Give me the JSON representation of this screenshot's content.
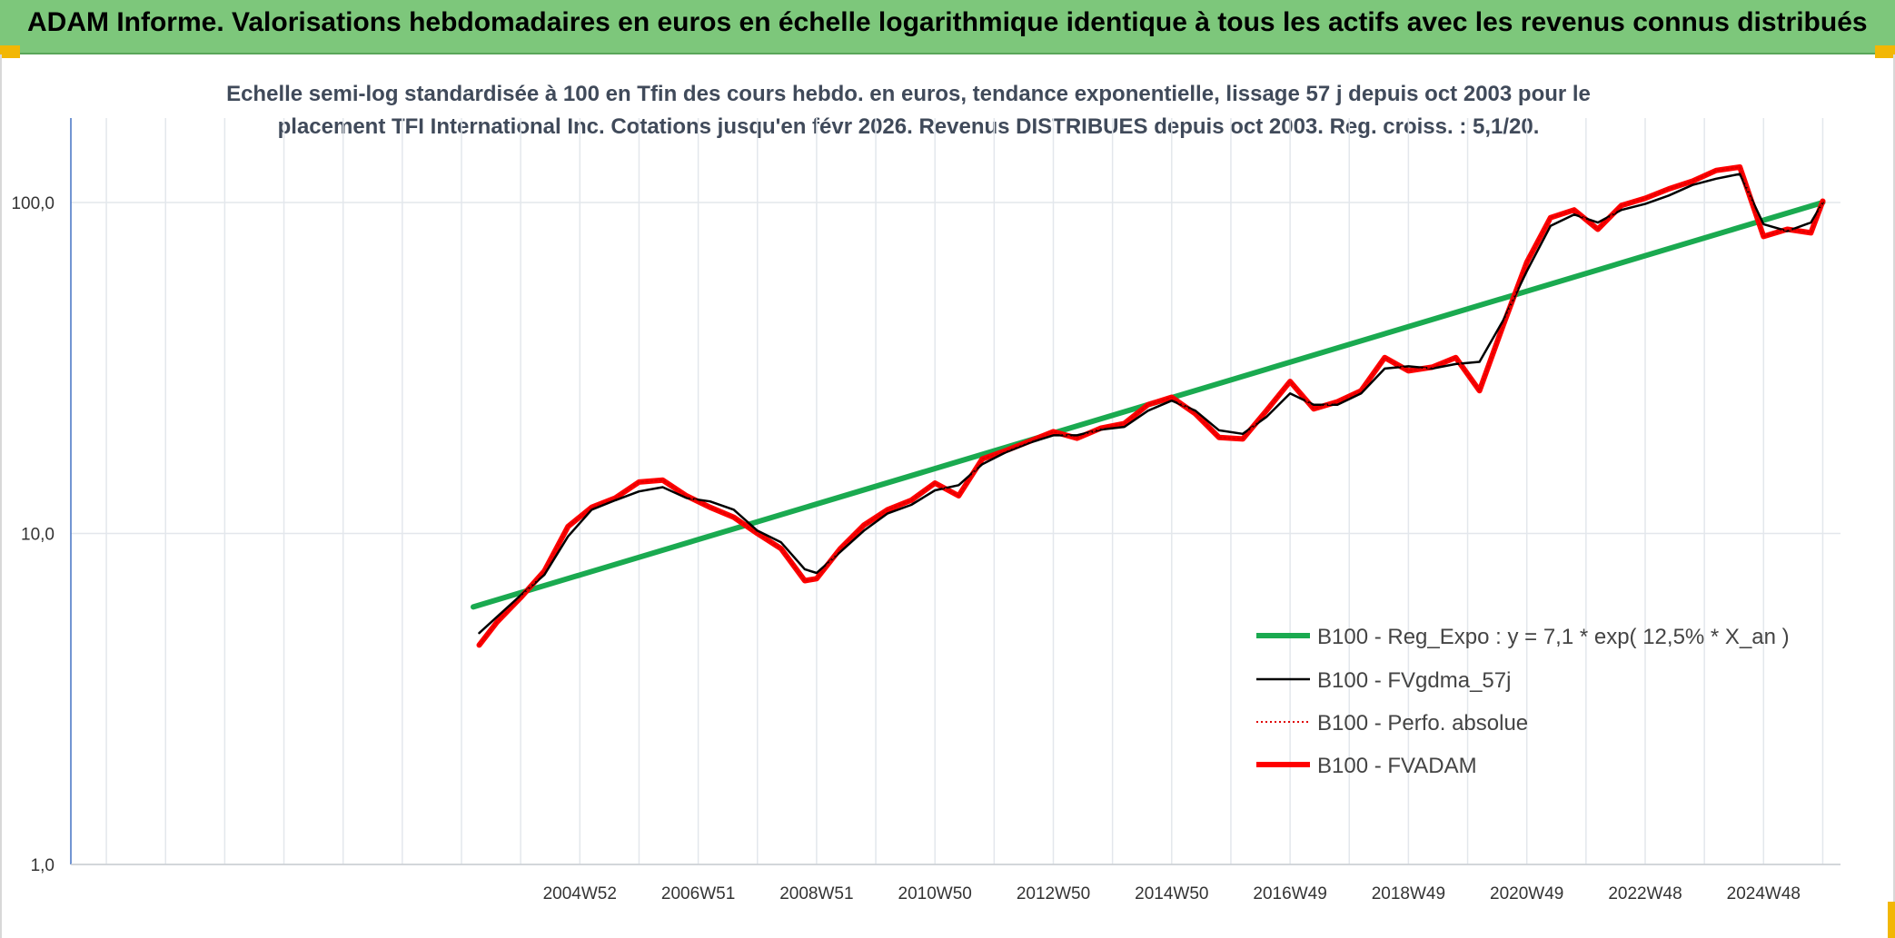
{
  "header": {
    "title": "ADAM Informe. Valorisations hebdomadaires en euros en échelle logarithmique identique à tous les actifs avec les revenus connus distribués"
  },
  "chart_data": {
    "type": "line",
    "title": "Echelle semi-log standardisée à 100 en Tfin des cours hebdo. en euros, tendance exponentielle, lissage 57 j depuis oct 2003 pour le placement TFI International Inc. Cotations jusqu'en févr 2026. Revenus DISTRIBUES depuis oct 2003. Reg. croiss. : 5,1/20.",
    "y_scale": "log",
    "ylim": [
      1,
      180
    ],
    "y_ticks": [
      "1,0",
      "10,0",
      "100,0"
    ],
    "y_tick_values": [
      1,
      10,
      100
    ],
    "xlim": [
      1996.4,
      2026.3
    ],
    "x_ticks": [
      "2004W52",
      "2006W51",
      "2008W51",
      "2010W50",
      "2012W50",
      "2014W50",
      "2016W49",
      "2018W49",
      "2020W49",
      "2022W48",
      "2024W48"
    ],
    "x_tick_values": [
      2005.0,
      2007.0,
      2009.0,
      2011.0,
      2013.0,
      2015.0,
      2017.0,
      2019.0,
      2021.0,
      2023.0,
      2025.0
    ],
    "grid": true,
    "legend_position": "bottom-right",
    "series": [
      {
        "name": "B100 - Reg_Expo : y = 7,1 * exp( 12,5% *  X_an )",
        "color": "#1aaa50",
        "style": "solid-thick",
        "x": [
          2003.2,
          2026.0
        ],
        "y": [
          6.0,
          100.0
        ]
      },
      {
        "name": "B100 - FVgdma_57j",
        "color": "#000000",
        "style": "solid",
        "x": [
          2003.3,
          2003.6,
          2004.0,
          2004.4,
          2004.8,
          2005.2,
          2005.6,
          2006.0,
          2006.4,
          2006.8,
          2007.2,
          2007.6,
          2008.0,
          2008.4,
          2008.8,
          2009.0,
          2009.4,
          2009.8,
          2010.2,
          2010.6,
          2011.0,
          2011.4,
          2011.8,
          2012.2,
          2012.6,
          2013.0,
          2013.4,
          2013.8,
          2014.2,
          2014.6,
          2015.0,
          2015.4,
          2015.8,
          2016.2,
          2016.6,
          2017.0,
          2017.4,
          2017.8,
          2018.2,
          2018.6,
          2019.0,
          2019.4,
          2019.8,
          2020.2,
          2020.6,
          2021.0,
          2021.4,
          2021.8,
          2022.2,
          2022.6,
          2023.0,
          2023.4,
          2023.8,
          2024.2,
          2024.6,
          2025.0,
          2025.4,
          2025.8,
          2026.0
        ],
        "y": [
          5.0,
          5.6,
          6.5,
          7.5,
          9.8,
          11.8,
          12.6,
          13.4,
          13.8,
          12.8,
          12.5,
          11.8,
          10.2,
          9.4,
          7.8,
          7.6,
          8.8,
          10.2,
          11.5,
          12.2,
          13.5,
          14.0,
          16.2,
          17.6,
          18.8,
          19.8,
          19.8,
          20.6,
          21.0,
          23.5,
          25.2,
          23.5,
          20.5,
          20.0,
          22.5,
          26.5,
          24.5,
          24.5,
          26.5,
          31.5,
          32.0,
          31.5,
          32.5,
          33.0,
          44.0,
          62.0,
          85.0,
          92.0,
          87.0,
          95.0,
          99.0,
          105.0,
          113.0,
          118.0,
          122.0,
          86.0,
          82.0,
          87.0,
          100.0
        ]
      },
      {
        "name": "B100 - Perfo. absolue",
        "color": "#e00000",
        "style": "dotted",
        "x": [
          2003.3,
          2003.6,
          2004.0,
          2004.4,
          2004.8,
          2005.2,
          2005.6,
          2006.0,
          2006.4,
          2006.8,
          2007.2,
          2007.6,
          2008.0,
          2008.4,
          2008.8,
          2009.0,
          2009.4,
          2009.8,
          2010.2,
          2010.6,
          2011.0,
          2011.4,
          2011.8,
          2012.2,
          2012.6,
          2013.0,
          2013.4,
          2013.8,
          2014.2,
          2014.6,
          2015.0,
          2015.4,
          2015.8,
          2016.2,
          2016.6,
          2017.0,
          2017.4,
          2017.8,
          2018.2,
          2018.6,
          2019.0,
          2019.4,
          2019.8,
          2020.2,
          2020.6,
          2021.0,
          2021.4,
          2021.8,
          2022.2,
          2022.6,
          2023.0,
          2023.4,
          2023.8,
          2024.2,
          2024.6,
          2025.0,
          2025.4,
          2025.8,
          2026.0
        ],
        "y": [
          4.6,
          5.4,
          6.4,
          7.7,
          10.5,
          12.0,
          12.8,
          14.3,
          14.5,
          13.0,
          12.0,
          11.2,
          10.0,
          9.0,
          7.2,
          7.3,
          9.0,
          10.6,
          11.8,
          12.6,
          14.2,
          13.0,
          16.8,
          17.8,
          19.0,
          20.3,
          19.4,
          20.8,
          21.5,
          24.5,
          25.8,
          23.0,
          19.5,
          19.3,
          23.5,
          28.8,
          23.8,
          25.0,
          27.0,
          34.0,
          31.0,
          31.8,
          34.0,
          27.0,
          42.5,
          66.0,
          90.0,
          95.0,
          83.0,
          98.0,
          103.0,
          110.0,
          116.0,
          125.0,
          128.0,
          79.0,
          83.0,
          81.0,
          101.0
        ]
      },
      {
        "name": "B100 - FVADAM",
        "color": "#ff0000",
        "style": "solid-thick",
        "x": [
          2003.3,
          2003.6,
          2004.0,
          2004.4,
          2004.8,
          2005.2,
          2005.6,
          2006.0,
          2006.4,
          2006.8,
          2007.2,
          2007.6,
          2008.0,
          2008.4,
          2008.8,
          2009.0,
          2009.4,
          2009.8,
          2010.2,
          2010.6,
          2011.0,
          2011.4,
          2011.8,
          2012.2,
          2012.6,
          2013.0,
          2013.4,
          2013.8,
          2014.2,
          2014.6,
          2015.0,
          2015.4,
          2015.8,
          2016.2,
          2016.6,
          2017.0,
          2017.4,
          2017.8,
          2018.2,
          2018.6,
          2019.0,
          2019.4,
          2019.8,
          2020.2,
          2020.6,
          2021.0,
          2021.4,
          2021.8,
          2022.2,
          2022.6,
          2023.0,
          2023.4,
          2023.8,
          2024.2,
          2024.6,
          2025.0,
          2025.4,
          2025.8,
          2026.0
        ],
        "y": [
          4.6,
          5.4,
          6.4,
          7.7,
          10.5,
          12.0,
          12.8,
          14.3,
          14.5,
          13.0,
          12.0,
          11.2,
          10.0,
          9.0,
          7.2,
          7.3,
          9.0,
          10.6,
          11.8,
          12.6,
          14.2,
          13.0,
          16.8,
          17.8,
          19.0,
          20.3,
          19.4,
          20.8,
          21.5,
          24.5,
          25.8,
          23.0,
          19.5,
          19.3,
          23.5,
          28.8,
          23.8,
          25.0,
          27.0,
          34.0,
          31.0,
          31.8,
          34.0,
          27.0,
          42.5,
          66.0,
          90.0,
          95.0,
          83.0,
          98.0,
          103.0,
          110.0,
          116.0,
          125.0,
          128.0,
          79.0,
          83.0,
          81.0,
          101.0
        ]
      }
    ]
  }
}
